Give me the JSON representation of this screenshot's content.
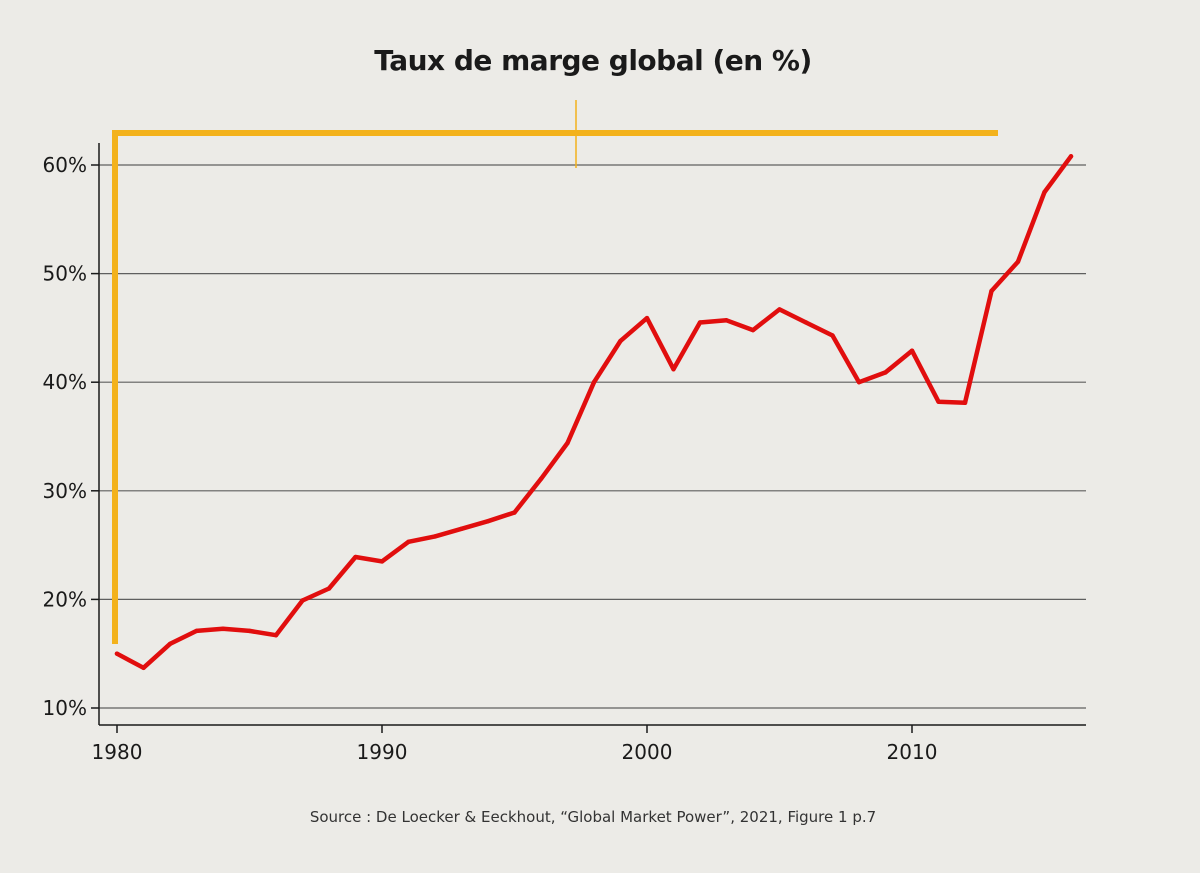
{
  "chart_data": {
    "type": "line",
    "title": "Taux de marge global (en %)",
    "xlabel": "",
    "ylabel": "",
    "xlim": [
      1980,
      2016
    ],
    "ylim": [
      10,
      62
    ],
    "x_ticks": [
      1980,
      1990,
      2000,
      2010
    ],
    "x_tick_labels": [
      "1980",
      "1990",
      "2000",
      "2010"
    ],
    "y_ticks": [
      10,
      20,
      30,
      40,
      50,
      60
    ],
    "y_tick_labels": [
      "10%",
      "20%",
      "30%",
      "40%",
      "50%",
      "60%"
    ],
    "grid": "horizontal",
    "legend": "none",
    "series": [
      {
        "color": "#e10e0e",
        "x": [
          1980,
          1981,
          1982,
          1983,
          1984,
          1985,
          1986,
          1987,
          1988,
          1989,
          1990,
          1991,
          1992,
          1993,
          1994,
          1995,
          1996,
          1997,
          1998,
          1999,
          2000,
          2001,
          2002,
          2003,
          2004,
          2005,
          2006,
          2007,
          2008,
          2009,
          2010,
          2011,
          2012,
          2013,
          2014,
          2015,
          2016
        ],
        "y": [
          15.0,
          13.7,
          15.9,
          17.1,
          17.3,
          17.1,
          16.7,
          19.9,
          21.0,
          23.9,
          23.5,
          25.3,
          25.8,
          26.5,
          27.2,
          28.0,
          31.1,
          34.4,
          40.0,
          43.8,
          45.9,
          41.2,
          45.5,
          45.7,
          44.8,
          46.7,
          45.5,
          44.3,
          40.0,
          40.9,
          42.9,
          38.2,
          38.1,
          48.4,
          51.1,
          57.5,
          60.8
        ]
      }
    ],
    "source": "Source : De Loecker & Eeckhout, “Global Market Power”, 2021, Figure 1 p.7"
  },
  "colors": {
    "background": "#ecebe7",
    "line": "#e10e0e",
    "accent_bracket": "#f3b21c",
    "grid": "#5f5f5f",
    "axis": "#1a1a1a"
  }
}
